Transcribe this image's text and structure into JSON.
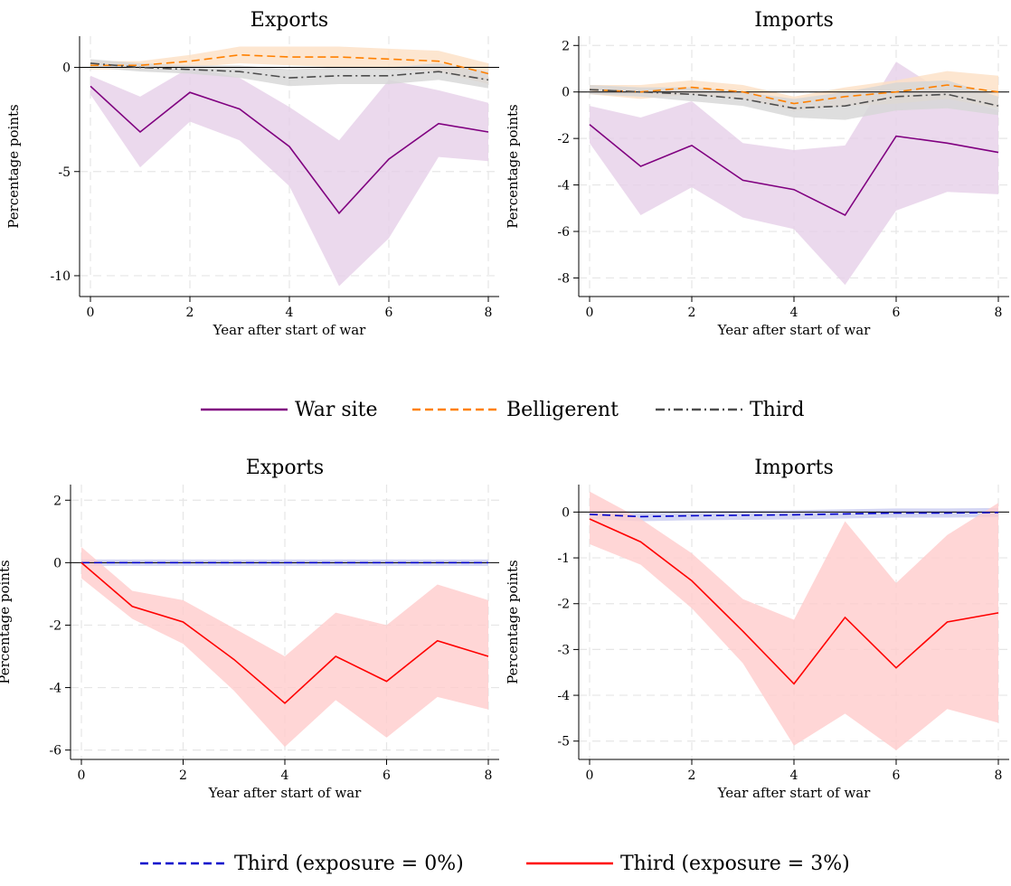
{
  "chart_data": [
    {
      "type": "line",
      "panel": "top-left",
      "title": "Exports",
      "xlabel": "Year after start of war",
      "ylabel": "Percentage points",
      "xlim": [
        0,
        8
      ],
      "ylim": [
        -11,
        1.5
      ],
      "xticks": [
        0,
        2,
        4,
        6,
        8
      ],
      "yticks": [
        -10,
        -5,
        0
      ],
      "ytick_labels": [
        "-10",
        "-5",
        "0"
      ],
      "reference_line": 0,
      "grid": true,
      "x": [
        0,
        1,
        2,
        3,
        4,
        5,
        6,
        7,
        8
      ],
      "series": [
        {
          "name": "War site",
          "color": "#800080",
          "dash": "solid",
          "values": [
            -0.9,
            -3.1,
            -1.2,
            -2.0,
            -3.8,
            -7.0,
            -4.4,
            -2.7,
            -3.1
          ],
          "lower": [
            -1.3,
            -4.8,
            -2.6,
            -3.5,
            -5.7,
            -10.5,
            -8.2,
            -4.3,
            -4.5
          ],
          "upper": [
            -0.4,
            -1.4,
            0.0,
            -0.5,
            -1.9,
            -3.5,
            -0.6,
            -1.1,
            -1.7
          ],
          "band_color": "#e6d0e8"
        },
        {
          "name": "Belligerent",
          "color": "#ff8000",
          "dash": "dashed",
          "values": [
            0.1,
            0.1,
            0.3,
            0.6,
            0.5,
            0.5,
            0.4,
            0.3,
            -0.3
          ],
          "lower": [
            -0.1,
            -0.1,
            0.0,
            0.2,
            0.1,
            0.0,
            -0.1,
            -0.2,
            -0.8
          ],
          "upper": [
            0.3,
            0.3,
            0.6,
            1.0,
            1.0,
            1.0,
            0.9,
            0.8,
            0.2
          ],
          "band_color": "#fce0c4"
        },
        {
          "name": "Third",
          "color": "#4d4d4d",
          "dash": "dashdot",
          "values": [
            0.2,
            0.0,
            -0.1,
            -0.2,
            -0.5,
            -0.4,
            -0.4,
            -0.2,
            -0.6
          ],
          "lower": [
            0.0,
            -0.2,
            -0.3,
            -0.5,
            -0.9,
            -0.8,
            -0.8,
            -0.6,
            -1.0
          ],
          "upper": [
            0.4,
            0.2,
            0.1,
            0.1,
            -0.1,
            0.0,
            0.0,
            0.2,
            -0.2
          ],
          "band_color": "#d6d6d6"
        }
      ]
    },
    {
      "type": "line",
      "panel": "top-right",
      "title": "Imports",
      "xlabel": "Year after start of war",
      "ylabel": "Percentage points",
      "xlim": [
        0,
        8
      ],
      "ylim": [
        -8.8,
        2.4
      ],
      "xticks": [
        0,
        2,
        4,
        6,
        8
      ],
      "yticks": [
        -8,
        -6,
        -4,
        -2,
        0,
        2
      ],
      "ytick_labels": [
        "-8",
        "-6",
        "-4",
        "-2",
        "0",
        "2"
      ],
      "reference_line": 0,
      "grid": true,
      "x": [
        0,
        1,
        2,
        3,
        4,
        5,
        6,
        7,
        8
      ],
      "series": [
        {
          "name": "War site",
          "color": "#800080",
          "dash": "solid",
          "values": [
            -1.4,
            -3.2,
            -2.3,
            -3.8,
            -4.2,
            -5.3,
            -1.9,
            -2.2,
            -2.6
          ],
          "lower": [
            -2.2,
            -5.3,
            -4.1,
            -5.4,
            -5.9,
            -8.3,
            -5.1,
            -4.3,
            -4.4
          ],
          "upper": [
            -0.6,
            -1.1,
            -0.4,
            -2.2,
            -2.5,
            -2.3,
            1.3,
            -0.1,
            -0.8
          ],
          "band_color": "#e6d0e8"
        },
        {
          "name": "Belligerent",
          "color": "#ff8000",
          "dash": "dashed",
          "values": [
            0.1,
            0.0,
            0.2,
            0.0,
            -0.5,
            -0.2,
            0.0,
            0.3,
            0.0
          ],
          "lower": [
            -0.1,
            -0.3,
            -0.1,
            -0.3,
            -0.8,
            -0.6,
            -0.5,
            -0.3,
            -0.7
          ],
          "upper": [
            0.3,
            0.3,
            0.5,
            0.3,
            -0.2,
            0.2,
            0.5,
            0.9,
            0.7
          ],
          "band_color": "#fce0c4"
        },
        {
          "name": "Third",
          "color": "#4d4d4d",
          "dash": "dashdot",
          "values": [
            0.1,
            0.0,
            -0.1,
            -0.3,
            -0.7,
            -0.6,
            -0.2,
            -0.1,
            -0.6
          ],
          "lower": [
            -0.1,
            -0.2,
            -0.4,
            -0.6,
            -1.1,
            -1.2,
            -0.8,
            -0.7,
            -1.0
          ],
          "upper": [
            0.3,
            0.2,
            0.2,
            0.0,
            -0.3,
            0.0,
            0.4,
            0.5,
            -0.2
          ],
          "band_color": "#d6d6d6"
        }
      ]
    },
    {
      "type": "line",
      "panel": "bottom-left",
      "title": "Exports",
      "xlabel": "Year after start of war",
      "ylabel": "Percentage points",
      "xlim": [
        0,
        8
      ],
      "ylim": [
        -6.3,
        2.5
      ],
      "xticks": [
        0,
        2,
        4,
        6,
        8
      ],
      "yticks": [
        -6,
        -4,
        -2,
        0,
        2
      ],
      "ytick_labels": [
        "-6",
        "-4",
        "-2",
        "0",
        "2"
      ],
      "reference_line": 0,
      "grid": true,
      "x": [
        0,
        1,
        2,
        3,
        4,
        5,
        6,
        7,
        8
      ],
      "series": [
        {
          "name": "Third (exposure = 0%)",
          "color": "#0000cc",
          "dash": "dashed",
          "values": [
            0.0,
            0.0,
            0.0,
            0.0,
            0.0,
            0.0,
            0.0,
            0.0,
            0.0
          ],
          "lower": [
            -0.1,
            -0.1,
            -0.1,
            -0.1,
            -0.1,
            -0.1,
            -0.1,
            -0.1,
            -0.1
          ],
          "upper": [
            0.1,
            0.1,
            0.1,
            0.1,
            0.1,
            0.1,
            0.1,
            0.1,
            0.1
          ],
          "band_color": "#c8cbf0"
        },
        {
          "name": "Third (exposure = 3%)",
          "color": "#ff0000",
          "dash": "solid",
          "values": [
            0.0,
            -1.4,
            -1.9,
            -3.1,
            -4.5,
            -3.0,
            -3.8,
            -2.5,
            -3.0
          ],
          "lower": [
            -0.5,
            -1.8,
            -2.6,
            -4.1,
            -5.9,
            -4.4,
            -5.6,
            -4.3,
            -4.7
          ],
          "upper": [
            0.5,
            -0.9,
            -1.2,
            -2.1,
            -3.0,
            -1.6,
            -2.0,
            -0.7,
            -1.2
          ],
          "band_color": "#ffcccc"
        }
      ]
    },
    {
      "type": "line",
      "panel": "bottom-right",
      "title": "Imports",
      "xlabel": "Year after start of war",
      "ylabel": "Percentage points",
      "xlim": [
        0,
        8
      ],
      "ylim": [
        -5.4,
        0.6
      ],
      "xticks": [
        0,
        2,
        4,
        6,
        8
      ],
      "yticks": [
        -5,
        -4,
        -3,
        -2,
        -1,
        0
      ],
      "ytick_labels": [
        "-5",
        "-4",
        "-3",
        "-2",
        "-1",
        "0"
      ],
      "reference_line": 0,
      "grid": true,
      "x": [
        0,
        1,
        2,
        3,
        4,
        5,
        6,
        7,
        8
      ],
      "series": [
        {
          "name": "Third (exposure = 0%)",
          "color": "#0000cc",
          "dash": "dashed",
          "values": [
            -0.05,
            -0.1,
            -0.08,
            -0.07,
            -0.06,
            -0.04,
            -0.02,
            -0.02,
            -0.01
          ],
          "lower": [
            -0.15,
            -0.2,
            -0.18,
            -0.17,
            -0.16,
            -0.14,
            -0.12,
            -0.12,
            -0.11
          ],
          "upper": [
            0.05,
            0.0,
            0.02,
            0.03,
            0.04,
            0.06,
            0.08,
            0.08,
            0.09
          ],
          "band_color": "#c8cbf0"
        },
        {
          "name": "Third (exposure = 3%)",
          "color": "#ff0000",
          "dash": "solid",
          "values": [
            -0.15,
            -0.65,
            -1.5,
            -2.6,
            -3.75,
            -2.3,
            -3.4,
            -2.4,
            -2.2
          ],
          "lower": [
            -0.7,
            -1.15,
            -2.1,
            -3.3,
            -5.1,
            -4.4,
            -5.2,
            -4.3,
            -4.6
          ],
          "upper": [
            0.45,
            -0.15,
            -0.9,
            -1.9,
            -2.35,
            -0.2,
            -1.55,
            -0.5,
            0.2
          ],
          "band_color": "#ffcccc"
        }
      ]
    }
  ],
  "legends": [
    {
      "items": [
        {
          "label": "War site",
          "color": "#800080",
          "dash": "solid"
        },
        {
          "label": "Belligerent",
          "color": "#ff8000",
          "dash": "dashed"
        },
        {
          "label": "Third",
          "color": "#4d4d4d",
          "dash": "dashdot"
        }
      ]
    },
    {
      "items": [
        {
          "label": "Third (exposure = 0%)",
          "color": "#0000cc",
          "dash": "dashed"
        },
        {
          "label": "Third (exposure = 3%)",
          "color": "#ff0000",
          "dash": "solid"
        }
      ]
    }
  ]
}
